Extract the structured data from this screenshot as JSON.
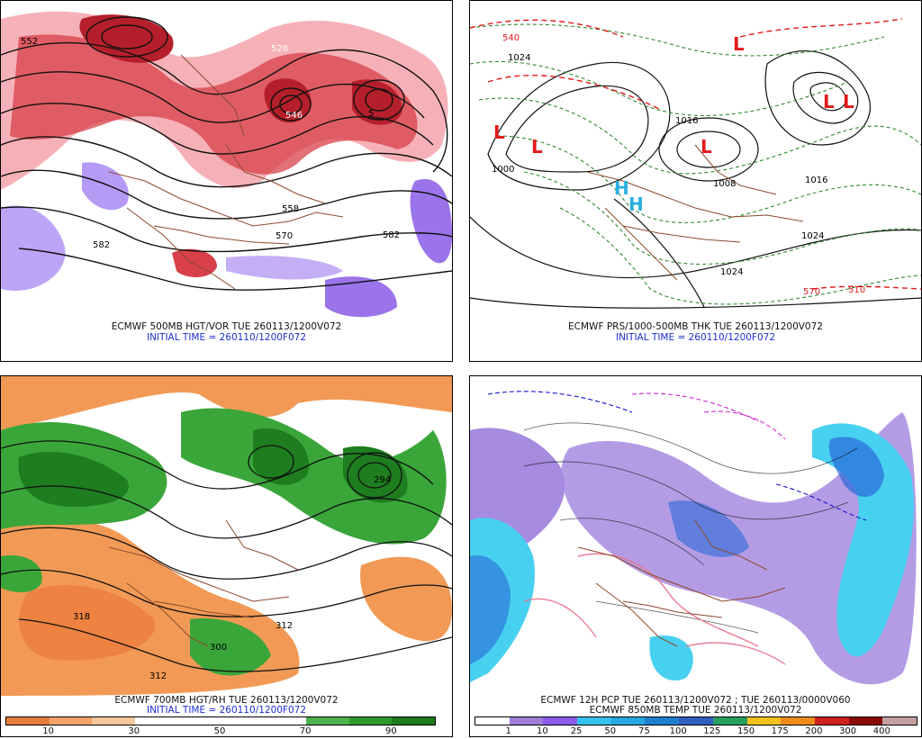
{
  "panels": [
    {
      "id": "p500",
      "caption": "ECMWF 500MB HGT/VOR TUE 260113/1200V072",
      "initial": "INITIAL TIME = 260110/1200F072",
      "contour_labels": [
        "552",
        "528",
        "546",
        "5",
        "558",
        "582",
        "582",
        "570"
      ],
      "colors": {
        "bg": "#ffffff",
        "warm": "#d4323c",
        "warm2": "#f28b95",
        "cool": "#8a5ce8",
        "cool2": "#b59bf5",
        "contour": "#111111",
        "border": "#8b4a2b"
      }
    },
    {
      "id": "pmslp",
      "caption": "ECMWF PRS/1000-500MB THK TUE 260113/1200V072",
      "initial": "INITIAL TIME = 260110/1200F072",
      "contour_labels": [
        "1024",
        "1000",
        "1016",
        "1024",
        "1024",
        "1016",
        "1008",
        "510",
        "570",
        "540"
      ],
      "low_marks": [
        "L",
        "L",
        "L",
        "L",
        "L",
        "L"
      ],
      "high_marks": [
        "H",
        "H"
      ],
      "colors": {
        "isobar": "#111111",
        "thk_green": "#2f8a2f",
        "thk_red": "#e11a1a",
        "high": "#2ab0e0",
        "border": "#8b4a2b"
      }
    },
    {
      "id": "p700",
      "caption": "ECMWF 700MB HGT/RH TUE 260113/1200V072",
      "initial": "INITIAL TIME = 260110/1200F072",
      "contour_labels": [
        "318",
        "300",
        "312",
        "312",
        "294"
      ],
      "colorbar": {
        "labels": [
          "10",
          "30",
          "50",
          "70",
          "90"
        ],
        "colors": [
          "#e67e3a",
          "#f3a36a",
          "#f6c79c",
          "#ffffff",
          "#ffffff",
          "#ffffff",
          "#ffffff",
          "#4db34d",
          "#2e9a2e",
          "#1d7a1d"
        ]
      },
      "colors": {
        "dry": "#f29a55",
        "dry2": "#ee8240",
        "moist": "#3aa63a",
        "moist2": "#1e7d1e",
        "contour": "#111111",
        "border": "#8b4a2b"
      }
    },
    {
      "id": "ppcp",
      "caption": "ECMWF 12H PCP TUE 260113/1200V072 ; TUE 260113/0000V060",
      "initial": "ECMWF 850MB TEMP TUE 260113/1200V072",
      "colorbar": {
        "labels": [
          "1",
          "10",
          "25",
          "50",
          "75",
          "100",
          "125",
          "150",
          "175",
          "200",
          "300",
          "400"
        ],
        "colors": [
          "#ffffff",
          "#a07ed8",
          "#8a5ce8",
          "#35c2ee",
          "#27a7e0",
          "#1e7fd0",
          "#2f5fc0",
          "#27a060",
          "#f2c21b",
          "#f08a1a",
          "#d12020",
          "#8a0a0a",
          "#c4a0a0"
        ]
      },
      "colors": {
        "lav": "#a78be0",
        "cyan": "#48d0f0",
        "blue": "#2a6ad9",
        "pink": "#e8748c",
        "magenta": "#d028d0",
        "dblue": "#1414cc",
        "border": "#8b4a2b"
      }
    }
  ]
}
